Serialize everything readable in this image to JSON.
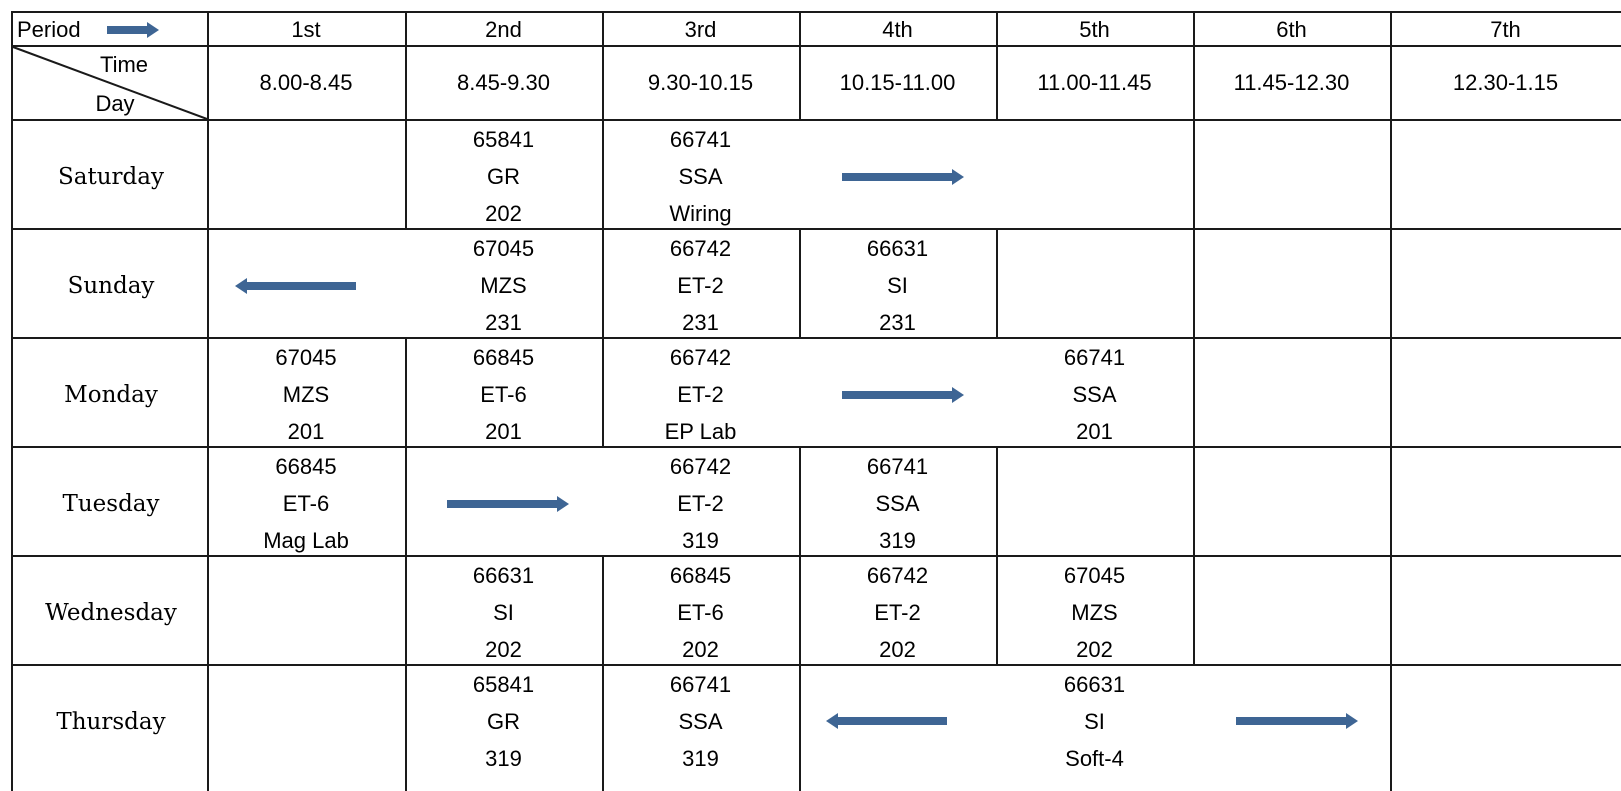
{
  "header": {
    "period_label": "Period",
    "time_label": "Time",
    "day_label": "Day",
    "periods": [
      "1st",
      "2nd",
      "3rd",
      "4th",
      "5th",
      "6th",
      "7th"
    ],
    "times": [
      "8.00-8.45",
      "8.45-9.30",
      "9.30-10.15",
      "10.15-11.00",
      "11.00-11.45",
      "11.45-12.30",
      "12.30-1.15"
    ]
  },
  "colors": {
    "grid": "#1a1a1a",
    "arrow": "#3e6594"
  },
  "days": [
    {
      "name": "Saturday",
      "cells": [
        {
          "col": 1,
          "code": "65841",
          "subject": "GR",
          "room": "202"
        },
        {
          "col": 2,
          "code": "66741",
          "subject": "SSA",
          "room": "Wiring"
        }
      ]
    },
    {
      "name": "Sunday",
      "cells": [
        {
          "col": 1,
          "code": "67045",
          "subject": "MZS",
          "room": "231"
        },
        {
          "col": 2,
          "code": "66742",
          "subject": "ET-2",
          "room": "231"
        },
        {
          "col": 3,
          "code": "66631",
          "subject": "SI",
          "room": "231"
        }
      ]
    },
    {
      "name": "Monday",
      "cells": [
        {
          "col": 0,
          "code": "67045",
          "subject": "MZS",
          "room": "201"
        },
        {
          "col": 1,
          "code": "66845",
          "subject": "ET-6",
          "room": "201"
        },
        {
          "col": 2,
          "code": "66742",
          "subject": "ET-2",
          "room": "EP Lab"
        },
        {
          "col": 4,
          "code": "66741",
          "subject": "SSA",
          "room": "201"
        }
      ]
    },
    {
      "name": "Tuesday",
      "cells": [
        {
          "col": 0,
          "code": "66845",
          "subject": "ET-6",
          "room": "Mag Lab"
        },
        {
          "col": 2,
          "code": "66742",
          "subject": "ET-2",
          "room": "319"
        },
        {
          "col": 3,
          "code": "66741",
          "subject": "SSA",
          "room": "319"
        }
      ]
    },
    {
      "name": "Wednesday",
      "cells": [
        {
          "col": 1,
          "code": "66631",
          "subject": "SI",
          "room": "202"
        },
        {
          "col": 2,
          "code": "66845",
          "subject": "ET-6",
          "room": "202"
        },
        {
          "col": 3,
          "code": "66742",
          "subject": "ET-2",
          "room": "202"
        },
        {
          "col": 4,
          "code": "67045",
          "subject": "MZS",
          "room": "202"
        }
      ]
    },
    {
      "name": "Thursday",
      "cells": [
        {
          "col": 1,
          "code": "65841",
          "subject": "GR",
          "room": "319"
        },
        {
          "col": 2,
          "code": "66741",
          "subject": "SSA",
          "room": "319"
        },
        {
          "col": 4,
          "code": "66631",
          "subject": "SI",
          "room": "Soft-4"
        }
      ]
    }
  ]
}
